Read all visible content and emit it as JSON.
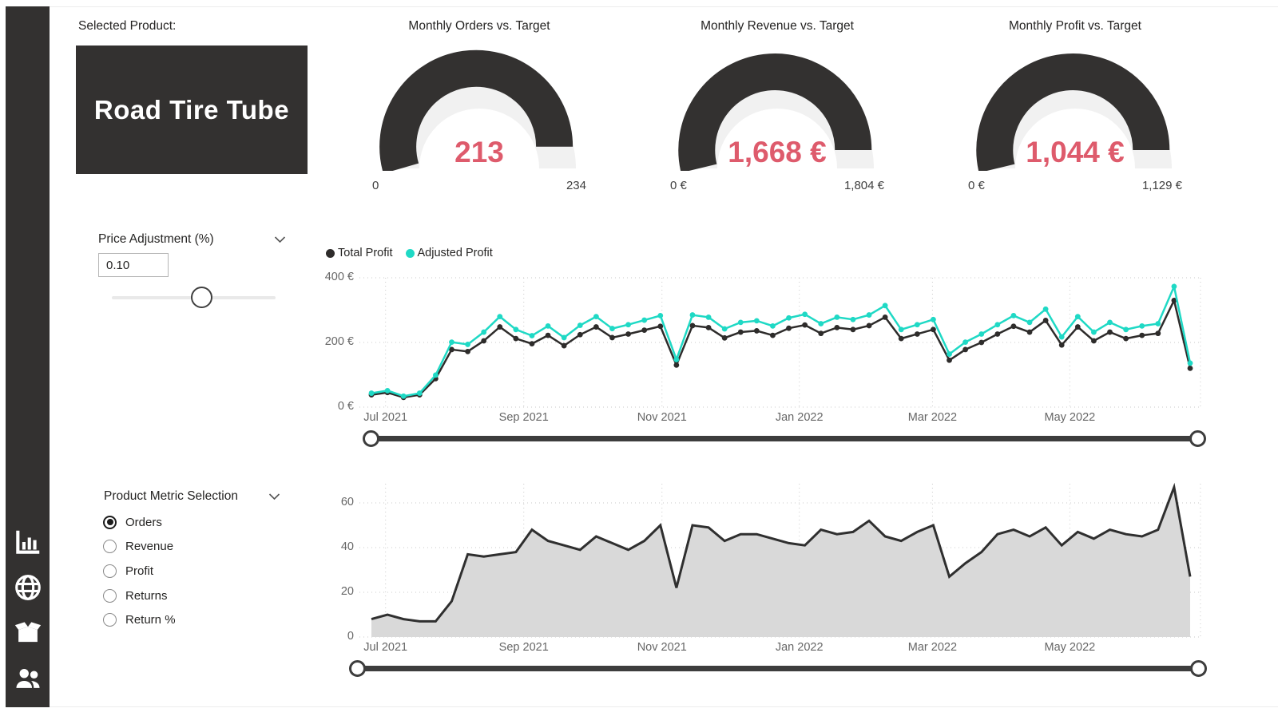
{
  "product": {
    "label": "Selected Product:",
    "name": "Road Tire Tube"
  },
  "sidebar": {
    "icons": [
      "bar-chart",
      "globe",
      "package",
      "people"
    ]
  },
  "gauges": [
    {
      "title": "Monthly Orders vs. Target",
      "value": 213,
      "min": 0,
      "max": 234,
      "value_label": "213",
      "min_label": "0",
      "max_label": "234"
    },
    {
      "title": "Monthly Revenue vs. Target",
      "value": 1668,
      "min": 0,
      "max": 1804,
      "value_label": "1,668 €",
      "min_label": "0 €",
      "max_label": "1,804 €"
    },
    {
      "title": "Monthly Profit vs. Target",
      "value": 1044,
      "min": 0,
      "max": 1129,
      "value_label": "1,044 €",
      "min_label": "0 €",
      "max_label": "1,129 €"
    }
  ],
  "price_slicer": {
    "title": "Price Adjustment (%)",
    "value": "0.10",
    "handle_fraction": 0.55
  },
  "metric_slicer": {
    "title": "Product Metric Selection",
    "options": [
      {
        "label": "Orders",
        "selected": true
      },
      {
        "label": "Revenue",
        "selected": false
      },
      {
        "label": "Profit",
        "selected": false
      },
      {
        "label": "Returns",
        "selected": false
      },
      {
        "label": "Return %",
        "selected": false
      }
    ]
  },
  "colors": {
    "dark": "#333130",
    "accent_value": "#DE5B6C",
    "cyan": "#1FD9C5",
    "gauge_rest": "#F1F1F1",
    "area_fill": "#D9D9D9",
    "grid": "#C9C9C9",
    "axis_text": "#666666",
    "track": "#3D3D3D",
    "line_dark": "#2E2C2B"
  },
  "chart_data": [
    {
      "type": "line",
      "title": "",
      "x_unit": "week",
      "x_start": "Jul 2021",
      "x_end": "Jun 2022",
      "x_tick_labels": [
        "Jul 2021",
        "Sep 2021",
        "Nov 2021",
        "Jan 2022",
        "Mar 2022",
        "May 2022"
      ],
      "y_tick_labels": [
        "400 €",
        "200 €",
        "0 €"
      ],
      "ylim": [
        0,
        400
      ],
      "grid": true,
      "legend_position": "top-left",
      "series": [
        {
          "name": "Total Profit",
          "color": "#2E2C2B",
          "values": [
            38,
            45,
            30,
            38,
            88,
            178,
            172,
            205,
            248,
            212,
            196,
            222,
            190,
            224,
            248,
            215,
            226,
            238,
            250,
            130,
            252,
            246,
            214,
            232,
            236,
            222,
            244,
            254,
            228,
            246,
            240,
            252,
            278,
            212,
            226,
            240,
            145,
            178,
            200,
            226,
            250,
            232,
            268,
            192,
            248,
            205,
            232,
            212,
            222,
            228,
            330,
            120
          ]
        },
        {
          "name": "Adjusted Profit",
          "color": "#1FD9C5",
          "values": [
            43,
            51,
            34,
            43,
            99,
            201,
            194,
            232,
            280,
            240,
            221,
            251,
            215,
            253,
            280,
            243,
            255,
            269,
            283,
            147,
            285,
            278,
            242,
            262,
            267,
            251,
            276,
            287,
            258,
            278,
            271,
            285,
            314,
            240,
            255,
            271,
            164,
            201,
            226,
            255,
            283,
            262,
            303,
            217,
            280,
            232,
            262,
            240,
            251,
            258,
            373,
            136
          ]
        }
      ],
      "slider": {
        "start_fraction": 0,
        "end_fraction": 1
      }
    },
    {
      "type": "area",
      "title": "",
      "metric": "Orders",
      "x_unit": "week",
      "x_start": "Jul 2021",
      "x_end": "Jun 2022",
      "x_tick_labels": [
        "Jul 2021",
        "Sep 2021",
        "Nov 2021",
        "Jan 2022",
        "Mar 2022",
        "May 2022"
      ],
      "y_tick_labels": [
        "60",
        "40",
        "20",
        "0"
      ],
      "ylim": [
        0,
        60
      ],
      "grid": true,
      "series": [
        {
          "name": "Orders",
          "line_color": "#2F2F2F",
          "fill_color": "#D9D9D9",
          "values": [
            8,
            10,
            8,
            7,
            7,
            16,
            37,
            36,
            37,
            38,
            48,
            43,
            41,
            39,
            45,
            42,
            39,
            43,
            50,
            22,
            50,
            49,
            43,
            46,
            46,
            44,
            42,
            41,
            48,
            46,
            47,
            52,
            45,
            43,
            47,
            50,
            27,
            33,
            38,
            46,
            48,
            45,
            49,
            41,
            47,
            44,
            48,
            46,
            45,
            48,
            67,
            27
          ]
        }
      ],
      "slider": {
        "start_fraction": 0,
        "end_fraction": 1
      }
    }
  ]
}
